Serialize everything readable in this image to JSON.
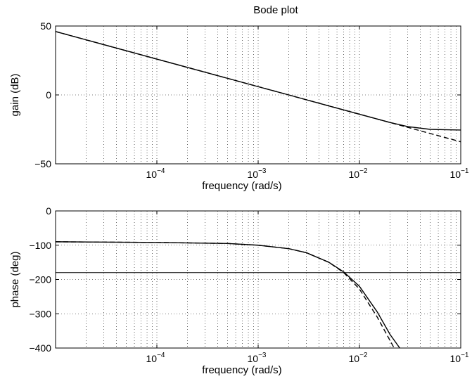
{
  "chart_data": [
    {
      "type": "line",
      "title": "Bode plot",
      "xlabel": "frequency (rad/s)",
      "ylabel": "gain (dB)",
      "xscale": "log",
      "xlim": [
        1e-05,
        0.1
      ],
      "ylim": [
        -50,
        50
      ],
      "xticks": [
        {
          "base": "10",
          "exp": "−4",
          "value": 0.0001
        },
        {
          "base": "10",
          "exp": "−3",
          "value": 0.001
        },
        {
          "base": "10",
          "exp": "−2",
          "value": 0.01
        },
        {
          "base": "10",
          "exp": "−1",
          "value": 0.1
        }
      ],
      "yticks": [
        {
          "label": "50",
          "value": 50
        },
        {
          "label": "0",
          "value": 0
        },
        {
          "label": "−50",
          "value": -50
        }
      ],
      "grid": true,
      "series": [
        {
          "style": "solid",
          "x": [
            1e-05,
            0.0001,
            0.001,
            0.002,
            0.005,
            0.01,
            0.02,
            0.03,
            0.05,
            0.1
          ],
          "y": [
            46,
            26,
            6,
            0,
            -8,
            -14,
            -20,
            -23,
            -25,
            -25.5
          ]
        },
        {
          "style": "dashed",
          "x": [
            1e-05,
            0.0001,
            0.001,
            0.002,
            0.005,
            0.01,
            0.02,
            0.05,
            0.1
          ],
          "y": [
            46,
            26,
            6,
            0,
            -8,
            -14,
            -20,
            -28,
            -34
          ]
        }
      ]
    },
    {
      "type": "line",
      "title": "",
      "xlabel": "frequency (rad/s)",
      "ylabel": "phase (deg)",
      "xscale": "log",
      "xlim": [
        1e-05,
        0.1
      ],
      "ylim": [
        -400,
        0
      ],
      "xticks": [
        {
          "base": "10",
          "exp": "−4",
          "value": 0.0001
        },
        {
          "base": "10",
          "exp": "−3",
          "value": 0.001
        },
        {
          "base": "10",
          "exp": "−2",
          "value": 0.01
        },
        {
          "base": "10",
          "exp": "−1",
          "value": 0.1
        }
      ],
      "yticks": [
        {
          "label": "0",
          "value": 0
        },
        {
          "label": "−100",
          "value": -100
        },
        {
          "label": "−200",
          "value": -200
        },
        {
          "label": "−300",
          "value": -300
        },
        {
          "label": "−400",
          "value": -400
        }
      ],
      "grid": true,
      "reference_lines": [
        -180
      ],
      "series": [
        {
          "style": "solid",
          "x": [
            1e-05,
            0.0001,
            0.0005,
            0.001,
            0.002,
            0.003,
            0.005,
            0.007,
            0.01,
            0.015,
            0.02,
            0.025
          ],
          "y": [
            -90,
            -92,
            -95,
            -100,
            -110,
            -122,
            -150,
            -178,
            -220,
            -295,
            -360,
            -400
          ]
        },
        {
          "style": "dashed",
          "x": [
            1e-05,
            0.0001,
            0.0005,
            0.001,
            0.002,
            0.003,
            0.005,
            0.007,
            0.01,
            0.015,
            0.022
          ],
          "y": [
            -90,
            -92,
            -95,
            -100,
            -110,
            -122,
            -150,
            -180,
            -228,
            -310,
            -400
          ]
        }
      ]
    }
  ]
}
